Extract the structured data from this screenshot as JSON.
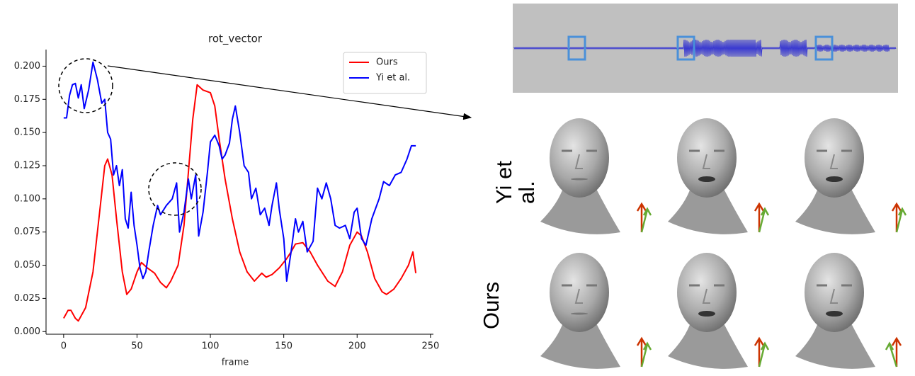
{
  "chart_data": {
    "type": "line",
    "title": "rot_vector",
    "x_label": "frame",
    "xlim": [
      -12,
      252
    ],
    "xticks": [
      0,
      50,
      100,
      150,
      200,
      250
    ],
    "ylim": [
      -0.002,
      0.2125
    ],
    "yticks": [
      {
        "value": 0,
        "label": "0.000"
      },
      0.025,
      {
        "value": 0.05,
        "label": "0.050"
      },
      0.075,
      {
        "value": 0.1,
        "label": "0.100"
      },
      0.125,
      {
        "value": 0.15,
        "label": "0.150"
      },
      0.175,
      {
        "value": 0.2,
        "label": "0.200"
      }
    ],
    "grid": false,
    "legend": "upper right",
    "series": [
      {
        "name": "Ours",
        "color": "#ff0000",
        "x": [
          0,
          3,
          5,
          8,
          10,
          15,
          20,
          25,
          28,
          30,
          33,
          36,
          40,
          43,
          46,
          50,
          53,
          57,
          62,
          66,
          70,
          73,
          78,
          82,
          85,
          88,
          91,
          95,
          100,
          103,
          106,
          110,
          115,
          120,
          125,
          130,
          135,
          138,
          142,
          147,
          152,
          155,
          158,
          163,
          168,
          173,
          180,
          185,
          190,
          195,
          200,
          203,
          207,
          212,
          217,
          220,
          225,
          230,
          235,
          238,
          240
        ],
        "values": [
          0.01,
          0.016,
          0.016,
          0.01,
          0.008,
          0.018,
          0.045,
          0.095,
          0.125,
          0.13,
          0.118,
          0.085,
          0.045,
          0.028,
          0.032,
          0.045,
          0.052,
          0.048,
          0.044,
          0.037,
          0.033,
          0.038,
          0.05,
          0.08,
          0.12,
          0.16,
          0.186,
          0.182,
          0.18,
          0.17,
          0.145,
          0.115,
          0.085,
          0.06,
          0.045,
          0.038,
          0.044,
          0.041,
          0.043,
          0.048,
          0.055,
          0.06,
          0.066,
          0.067,
          0.06,
          0.05,
          0.038,
          0.034,
          0.045,
          0.065,
          0.075,
          0.072,
          0.06,
          0.04,
          0.03,
          0.028,
          0.032,
          0.04,
          0.05,
          0.06,
          0.044
        ]
      },
      {
        "name": "Yi et al.",
        "color": "#0000ff",
        "x": [
          0,
          2,
          4,
          6,
          8,
          10,
          12,
          14,
          17,
          20,
          23,
          26,
          28,
          30,
          32,
          34,
          36,
          38,
          40,
          42,
          44,
          46,
          48,
          50,
          52,
          54,
          56,
          58,
          61,
          64,
          66,
          70,
          74,
          77,
          79,
          82,
          85,
          87,
          90,
          92,
          95,
          98,
          100,
          103,
          106,
          108,
          110,
          113,
          115,
          117,
          120,
          123,
          126,
          128,
          131,
          134,
          137,
          140,
          142,
          145,
          147,
          150,
          152,
          155,
          158,
          160,
          163,
          166,
          170,
          173,
          176,
          179,
          182,
          185,
          188,
          192,
          195,
          198,
          200,
          203,
          206,
          210,
          215,
          218,
          222,
          226,
          230,
          234,
          237,
          240
        ],
        "values": [
          0.161,
          0.161,
          0.178,
          0.186,
          0.187,
          0.176,
          0.186,
          0.168,
          0.182,
          0.203,
          0.19,
          0.172,
          0.175,
          0.15,
          0.145,
          0.118,
          0.125,
          0.11,
          0.122,
          0.085,
          0.078,
          0.105,
          0.08,
          0.065,
          0.048,
          0.04,
          0.045,
          0.06,
          0.08,
          0.095,
          0.088,
          0.095,
          0.1,
          0.112,
          0.075,
          0.09,
          0.115,
          0.1,
          0.118,
          0.072,
          0.09,
          0.12,
          0.143,
          0.148,
          0.14,
          0.13,
          0.133,
          0.142,
          0.16,
          0.17,
          0.15,
          0.125,
          0.12,
          0.1,
          0.108,
          0.088,
          0.093,
          0.08,
          0.095,
          0.112,
          0.092,
          0.07,
          0.038,
          0.06,
          0.085,
          0.075,
          0.083,
          0.06,
          0.068,
          0.108,
          0.1,
          0.112,
          0.1,
          0.08,
          0.078,
          0.08,
          0.07,
          0.09,
          0.093,
          0.07,
          0.065,
          0.085,
          0.1,
          0.113,
          0.11,
          0.118,
          0.12,
          0.13,
          0.14,
          0.14
        ]
      }
    ]
  },
  "panel": {
    "row_labels": [
      "Yi et al.",
      "Ours"
    ]
  }
}
